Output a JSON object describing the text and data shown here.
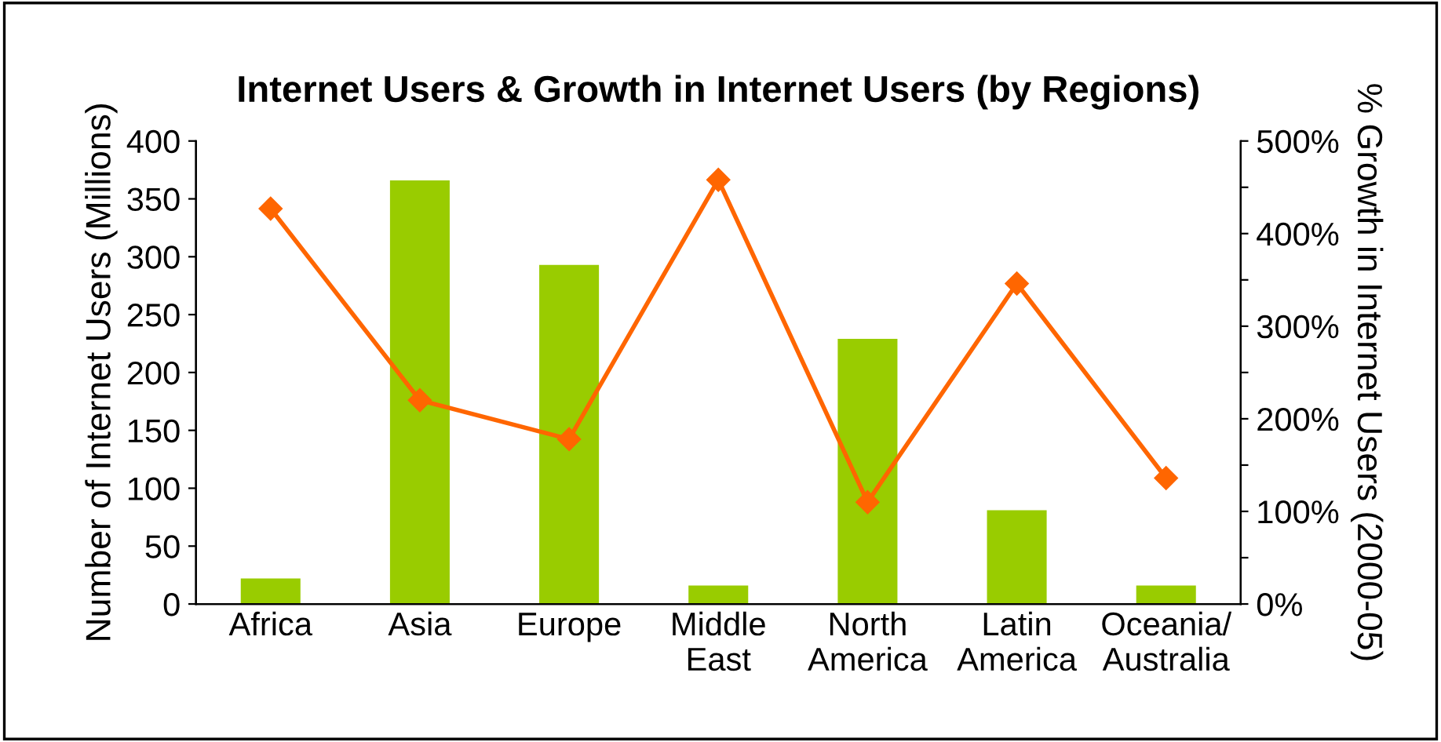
{
  "chart_data": {
    "type": "bar",
    "title": "Internet Users & Growth in Internet Users (by Regions)",
    "ylabel": "Number of Internet Users (Millions)",
    "y2label": "% Growth in Internet Users (2000-05)",
    "categories": [
      "Africa",
      "Asia",
      "Europe",
      "Middle\nEast",
      "North\nAmerica",
      "Latin\nAmerica",
      "Oceania/\nAustralia"
    ],
    "series": [
      {
        "color": "#99cc00",
        "values": [
          22,
          366,
          293,
          16,
          229,
          81,
          16
        ]
      },
      {
        "type": "line",
        "axis": "y2",
        "color": "#ff6600",
        "marker": "diamond",
        "values": [
          427,
          220,
          178,
          458,
          110,
          346,
          136
        ]
      }
    ],
    "ylim": [
      0,
      400
    ],
    "yticks": [
      0,
      50,
      100,
      150,
      200,
      250,
      300,
      350,
      400
    ],
    "y2lim": [
      0,
      500
    ],
    "y2ticks": [
      {
        "value": 0,
        "label": "0%"
      },
      {
        "value": 50,
        "label": null
      },
      {
        "value": 100,
        "label": "100%"
      },
      {
        "value": 150,
        "label": null
      },
      {
        "value": 200,
        "label": "200%"
      },
      {
        "value": 250,
        "label": null
      },
      {
        "value": 300,
        "label": "300%"
      },
      {
        "value": 350,
        "label": null
      },
      {
        "value": 400,
        "label": "400%"
      },
      {
        "value": 450,
        "label": null
      },
      {
        "value": 500,
        "label": "500%"
      }
    ],
    "grid": false,
    "legend": false
  }
}
